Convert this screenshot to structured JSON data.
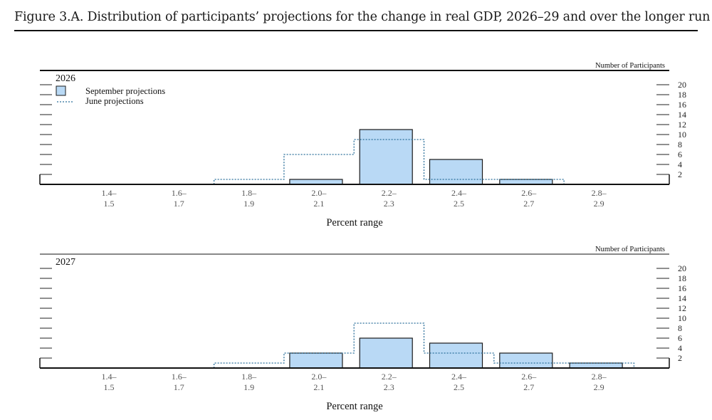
{
  "figure": {
    "title": "Figure 3.A. Distribution of participants’ projections for the change in real GDP, 2026–29 and over the longer run"
  },
  "colors": {
    "bar_fill": "#b9d9f5",
    "bar_stroke": "#1a1a1a",
    "june_line": "#2a6f9a",
    "tick_label": "#555555",
    "axis": "#111111"
  },
  "chart_data": [
    {
      "type": "bar",
      "panel_label": "2026",
      "right_axis_title": "Number of Participants",
      "xlabel": "Percent range",
      "ylabel": "",
      "ylim": [
        0,
        20
      ],
      "yticks": [
        2,
        4,
        6,
        8,
        10,
        12,
        14,
        16,
        18,
        20
      ],
      "categories": [
        "1.4–1.5",
        "1.6–1.7",
        "1.8–1.9",
        "2.0–2.1",
        "2.2–2.3",
        "2.4–2.5",
        "2.6–2.7",
        "2.8–2.9"
      ],
      "category_labels": [
        [
          "1.4–",
          "1.5"
        ],
        [
          "1.6–",
          "1.7"
        ],
        [
          "1.8–",
          "1.9"
        ],
        [
          "2.0–",
          "2.1"
        ],
        [
          "2.2–",
          "2.3"
        ],
        [
          "2.4–",
          "2.5"
        ],
        [
          "2.6–",
          "2.7"
        ],
        [
          "2.8–",
          "2.9"
        ]
      ],
      "legend": {
        "placement": "top-left",
        "items": [
          "September projections",
          "June projections"
        ]
      },
      "series": [
        {
          "name": "September projections",
          "style": "bar",
          "values": [
            0,
            0,
            0,
            1,
            11,
            5,
            1,
            0
          ]
        },
        {
          "name": "June projections",
          "style": "dotted-step",
          "values": [
            0,
            0,
            1,
            6,
            9,
            1,
            1,
            0
          ]
        }
      ]
    },
    {
      "type": "bar",
      "panel_label": "2027",
      "right_axis_title": "Number of Participants",
      "xlabel": "Percent range",
      "ylabel": "",
      "ylim": [
        0,
        20
      ],
      "yticks": [
        2,
        4,
        6,
        8,
        10,
        12,
        14,
        16,
        18,
        20
      ],
      "categories": [
        "1.4–1.5",
        "1.6–1.7",
        "1.8–1.9",
        "2.0–2.1",
        "2.2–2.3",
        "2.4–2.5",
        "2.6–2.7",
        "2.8–2.9"
      ],
      "category_labels": [
        [
          "1.4–",
          "1.5"
        ],
        [
          "1.6–",
          "1.7"
        ],
        [
          "1.8–",
          "1.9"
        ],
        [
          "2.0–",
          "2.1"
        ],
        [
          "2.2–",
          "2.3"
        ],
        [
          "2.4–",
          "2.5"
        ],
        [
          "2.6–",
          "2.7"
        ],
        [
          "2.8–",
          "2.9"
        ]
      ],
      "series": [
        {
          "name": "September projections",
          "style": "bar",
          "values": [
            0,
            0,
            0,
            3,
            6,
            5,
            3,
            1
          ]
        },
        {
          "name": "June projections",
          "style": "dotted-step",
          "values": [
            0,
            0,
            1,
            3,
            9,
            3,
            1,
            1
          ]
        }
      ]
    }
  ]
}
